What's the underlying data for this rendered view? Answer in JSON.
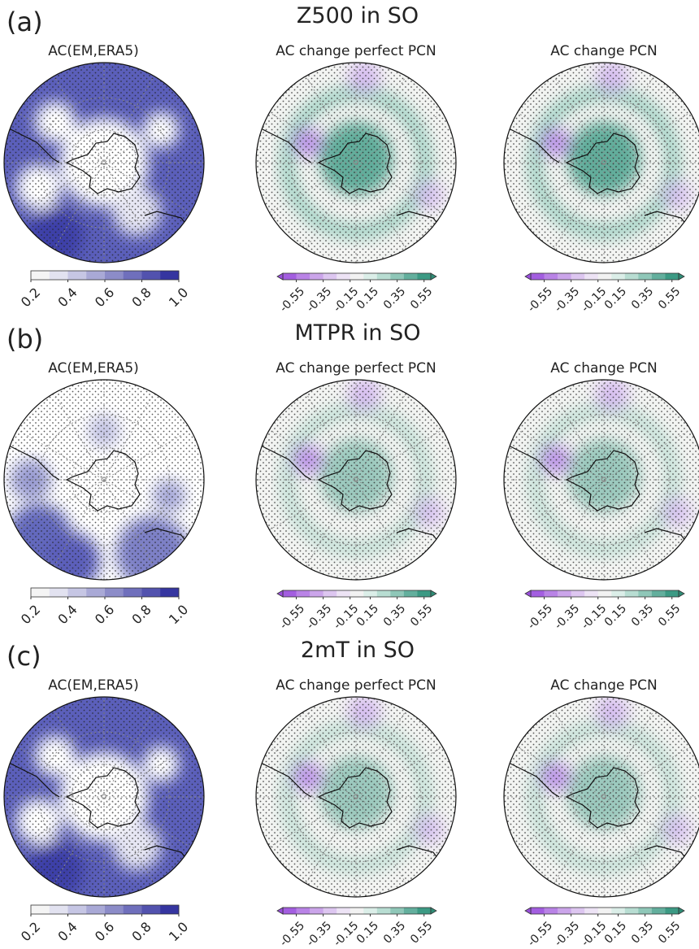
{
  "rows": [
    {
      "label": "(a)",
      "title": "Z500 in SO",
      "panels": [
        {
          "title": "AC(EM,ERA5)",
          "colorbar": [
            "0.2",
            "0.4",
            "0.6",
            "0.8",
            "1.0"
          ]
        },
        {
          "title": "AC change perfect PCN",
          "colorbar": [
            "-0.55",
            "-0.35",
            "-0.15",
            "0.15",
            "0.35",
            "0.55"
          ]
        },
        {
          "title": "AC change PCN",
          "colorbar": [
            "-0.55",
            "-0.35",
            "-0.15",
            "0.15",
            "0.35",
            "0.55"
          ]
        }
      ]
    },
    {
      "label": "(b)",
      "title": "MTPR in SO",
      "panels": [
        {
          "title": "AC(EM,ERA5)",
          "colorbar": [
            "0.2",
            "0.4",
            "0.6",
            "0.8",
            "1.0"
          ]
        },
        {
          "title": "AC change perfect PCN",
          "colorbar": [
            "-0.55",
            "-0.35",
            "-0.15",
            "0.15",
            "0.35",
            "0.55"
          ]
        },
        {
          "title": "AC change PCN",
          "colorbar": [
            "-0.55",
            "-0.35",
            "-0.15",
            "0.15",
            "0.35",
            "0.55"
          ]
        }
      ]
    },
    {
      "label": "(c)",
      "title": "2mT in SO",
      "panels": [
        {
          "title": "AC(EM,ERA5)",
          "colorbar": [
            "0.2",
            "0.4",
            "0.6",
            "0.8",
            "1.0"
          ]
        },
        {
          "title": "AC change perfect PCN",
          "colorbar": [
            "-0.55",
            "-0.35",
            "-0.15",
            "0.15",
            "0.35",
            "0.55"
          ]
        },
        {
          "title": "AC change PCN",
          "colorbar": [
            "-0.55",
            "-0.35",
            "-0.15",
            "0.15",
            "0.35",
            "0.55"
          ]
        }
      ]
    }
  ]
}
